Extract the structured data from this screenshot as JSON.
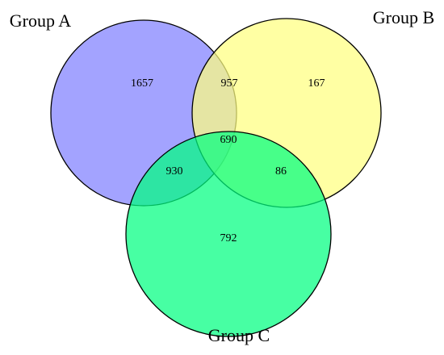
{
  "chart_data": {
    "type": "venn",
    "sets": [
      {
        "name": "Group A",
        "color": "#8080ff"
      },
      {
        "name": "Group B",
        "color": "#ffff80"
      },
      {
        "name": "Group C",
        "color": "#00ff80"
      }
    ],
    "values": [
      1657,
      957,
      167,
      690,
      930,
      86,
      792
    ]
  }
}
